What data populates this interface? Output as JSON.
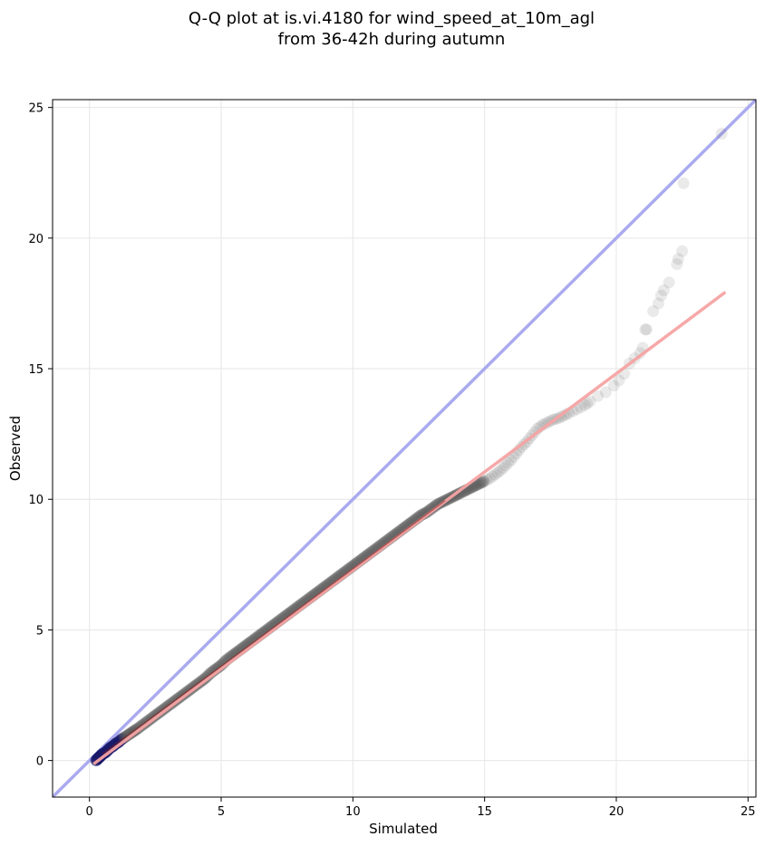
{
  "chart_data": {
    "type": "scatter",
    "title": "Q-Q plot at is.vi.4180 for wind_speed_at_10m_agl",
    "subtitle": "from 36-42h during autumn",
    "xlabel": "Simulated",
    "ylabel": "Observed",
    "xlim": [
      -1.4,
      25.3
    ],
    "ylim": [
      -1.4,
      25.3
    ],
    "xticks": [
      "0",
      "5",
      "10",
      "15",
      "20",
      "25"
    ],
    "yticks": [
      "0",
      "5",
      "10",
      "15",
      "20",
      "25"
    ],
    "grid": true,
    "legend": "none",
    "reference_line": {
      "description": "1:1 line",
      "color": "#aaaaf0",
      "from": [
        -1.4,
        -1.4
      ],
      "to": [
        25.3,
        25.3
      ]
    },
    "fit_line": {
      "description": "linear fit",
      "color": "#f5a3a3",
      "from": [
        0.2,
        -0.1
      ],
      "to": [
        24.1,
        17.9
      ]
    },
    "points": [
      [
        0.25,
        0.0
      ],
      [
        0.3,
        0.05
      ],
      [
        0.35,
        0.1
      ],
      [
        0.4,
        0.15
      ],
      [
        0.45,
        0.2
      ],
      [
        0.5,
        0.25
      ],
      [
        0.6,
        0.3
      ],
      [
        0.7,
        0.4
      ],
      [
        0.8,
        0.5
      ],
      [
        0.9,
        0.55
      ],
      [
        1.0,
        0.65
      ],
      [
        1.1,
        0.7
      ],
      [
        1.2,
        0.8
      ],
      [
        1.35,
        0.9
      ],
      [
        1.5,
        1.0
      ],
      [
        1.65,
        1.1
      ],
      [
        1.8,
        1.2
      ],
      [
        2.0,
        1.35
      ],
      [
        2.2,
        1.5
      ],
      [
        2.4,
        1.65
      ],
      [
        2.6,
        1.8
      ],
      [
        2.8,
        1.95
      ],
      [
        3.0,
        2.1
      ],
      [
        3.2,
        2.25
      ],
      [
        3.4,
        2.4
      ],
      [
        3.6,
        2.55
      ],
      [
        3.8,
        2.7
      ],
      [
        4.0,
        2.85
      ],
      [
        4.2,
        3.0
      ],
      [
        4.4,
        3.15
      ],
      [
        4.6,
        3.35
      ],
      [
        4.8,
        3.5
      ],
      [
        5.0,
        3.65
      ],
      [
        5.2,
        3.85
      ],
      [
        5.4,
        4.0
      ],
      [
        5.6,
        4.15
      ],
      [
        5.8,
        4.3
      ],
      [
        6.0,
        4.45
      ],
      [
        6.2,
        4.6
      ],
      [
        6.4,
        4.75
      ],
      [
        6.6,
        4.9
      ],
      [
        6.8,
        5.05
      ],
      [
        7.0,
        5.2
      ],
      [
        7.2,
        5.35
      ],
      [
        7.4,
        5.5
      ],
      [
        7.6,
        5.65
      ],
      [
        7.8,
        5.8
      ],
      [
        8.0,
        5.95
      ],
      [
        8.2,
        6.1
      ],
      [
        8.4,
        6.25
      ],
      [
        8.6,
        6.4
      ],
      [
        8.8,
        6.55
      ],
      [
        9.0,
        6.7
      ],
      [
        9.2,
        6.85
      ],
      [
        9.4,
        7.0
      ],
      [
        9.6,
        7.15
      ],
      [
        9.8,
        7.3
      ],
      [
        10.0,
        7.45
      ],
      [
        10.2,
        7.6
      ],
      [
        10.4,
        7.75
      ],
      [
        10.6,
        7.9
      ],
      [
        10.8,
        8.05
      ],
      [
        11.0,
        8.2
      ],
      [
        11.2,
        8.35
      ],
      [
        11.4,
        8.5
      ],
      [
        11.6,
        8.65
      ],
      [
        11.8,
        8.8
      ],
      [
        12.0,
        8.95
      ],
      [
        12.2,
        9.1
      ],
      [
        12.4,
        9.25
      ],
      [
        12.6,
        9.4
      ],
      [
        12.8,
        9.5
      ],
      [
        13.0,
        9.65
      ],
      [
        13.2,
        9.8
      ],
      [
        13.4,
        9.9
      ],
      [
        13.6,
        10.0
      ],
      [
        13.8,
        10.1
      ],
      [
        14.0,
        10.2
      ],
      [
        14.2,
        10.3
      ],
      [
        14.4,
        10.4
      ],
      [
        14.6,
        10.5
      ],
      [
        14.8,
        10.6
      ],
      [
        15.0,
        10.7
      ],
      [
        15.2,
        10.8
      ],
      [
        15.4,
        10.95
      ],
      [
        15.6,
        11.1
      ],
      [
        15.8,
        11.3
      ],
      [
        16.0,
        11.5
      ],
      [
        16.2,
        11.75
      ],
      [
        16.4,
        12.0
      ],
      [
        16.6,
        12.2
      ],
      [
        16.8,
        12.45
      ],
      [
        17.0,
        12.7
      ],
      [
        17.2,
        12.85
      ],
      [
        17.4,
        12.95
      ],
      [
        17.6,
        13.05
      ],
      [
        17.8,
        13.1
      ],
      [
        18.0,
        13.2
      ],
      [
        18.2,
        13.3
      ],
      [
        18.5,
        13.45
      ],
      [
        18.8,
        13.6
      ],
      [
        19.0,
        13.75
      ],
      [
        19.3,
        13.95
      ],
      [
        19.6,
        14.1
      ],
      [
        19.9,
        14.35
      ],
      [
        20.1,
        14.55
      ],
      [
        20.3,
        14.8
      ],
      [
        20.5,
        15.2
      ],
      [
        20.7,
        15.4
      ],
      [
        20.9,
        15.6
      ],
      [
        21.0,
        15.8
      ],
      [
        21.1,
        16.5
      ],
      [
        21.15,
        16.5
      ],
      [
        21.4,
        17.2
      ],
      [
        21.6,
        17.5
      ],
      [
        21.7,
        17.8
      ],
      [
        21.8,
        18.0
      ],
      [
        22.0,
        18.3
      ],
      [
        22.3,
        19.0
      ],
      [
        22.35,
        19.2
      ],
      [
        22.5,
        19.5
      ],
      [
        22.55,
        22.1
      ],
      [
        24.0,
        24.0
      ]
    ]
  }
}
